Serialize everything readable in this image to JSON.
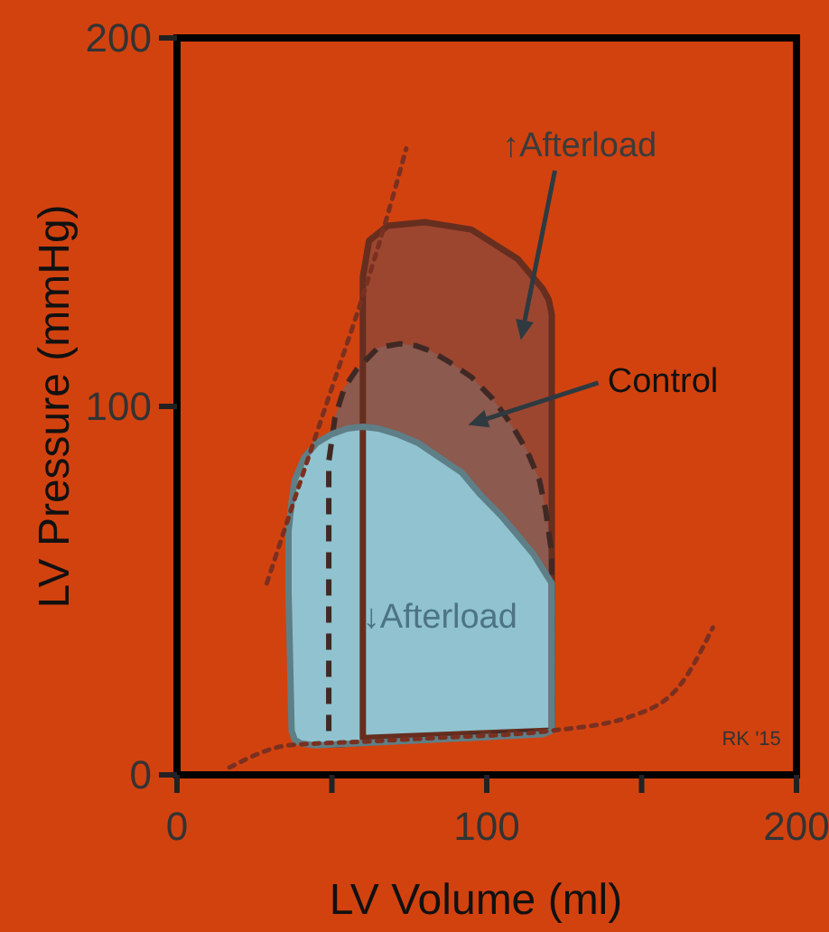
{
  "chart_data": {
    "type": "area",
    "xlabel": "LV Volume (ml)",
    "ylabel": "LV Pressure (mmHg)",
    "xlim": [
      0,
      200
    ],
    "ylim": [
      0,
      200
    ],
    "xticks": [
      0,
      {
        "value": 50,
        "label": null
      },
      100,
      {
        "value": 150,
        "label": null
      },
      200
    ],
    "yticks": [
      0,
      100,
      200
    ],
    "series": [
      {
        "color": "#9c4630",
        "x": [
          60,
          121,
          121,
          120,
          118,
          110,
          95,
          80,
          68,
          62,
          60,
          60
        ],
        "values": [
          10,
          12,
          125,
          129,
          132,
          140,
          148,
          150,
          149,
          145,
          135,
          10
        ]
      },
      {
        "color": "#8c5a4e",
        "line_style": "dashed",
        "x": [
          49,
          121,
          121,
          119,
          117,
          113,
          108,
          102,
          95,
          88,
          82,
          77,
          72,
          65,
          58,
          54,
          51,
          49,
          49
        ],
        "values": [
          8,
          12,
          60,
          72,
          80,
          88,
          95,
          102,
          108,
          112,
          115,
          116.5,
          117,
          116,
          110,
          105,
          97,
          85,
          8
        ]
      },
      {
        "color": "#90c3cf",
        "x": [
          40,
          45,
          118,
          121,
          121,
          118,
          115,
          110,
          105,
          98,
          92,
          85,
          78,
          71,
          65,
          60,
          55,
          50,
          45,
          41,
          38,
          37,
          36,
          36,
          37,
          38
        ],
        "values": [
          8.5,
          8,
          11,
          12,
          52,
          56,
          60,
          65,
          70,
          76,
          82,
          86,
          90,
          92.5,
          94,
          94.5,
          94,
          92.5,
          90,
          86,
          80,
          74,
          66,
          50,
          12,
          9.5
        ]
      },
      {
        "type": "line",
        "color": "#7a3020",
        "line_style": "dotted",
        "x": [
          29,
          40,
          50,
          60,
          68,
          74
        ],
        "values": [
          52,
          80,
          105,
          130,
          152,
          170
        ]
      },
      {
        "type": "line",
        "color": "#7a3020",
        "line_style": "dotted",
        "x": [
          17,
          36,
          60,
          83,
          121,
          147,
          163,
          173
        ],
        "values": [
          2,
          8,
          9,
          10,
          12,
          16,
          25,
          40
        ]
      }
    ],
    "annotations": [
      "↑Afterload",
      "Control",
      "↓Afterload",
      "RK '15"
    ]
  }
}
